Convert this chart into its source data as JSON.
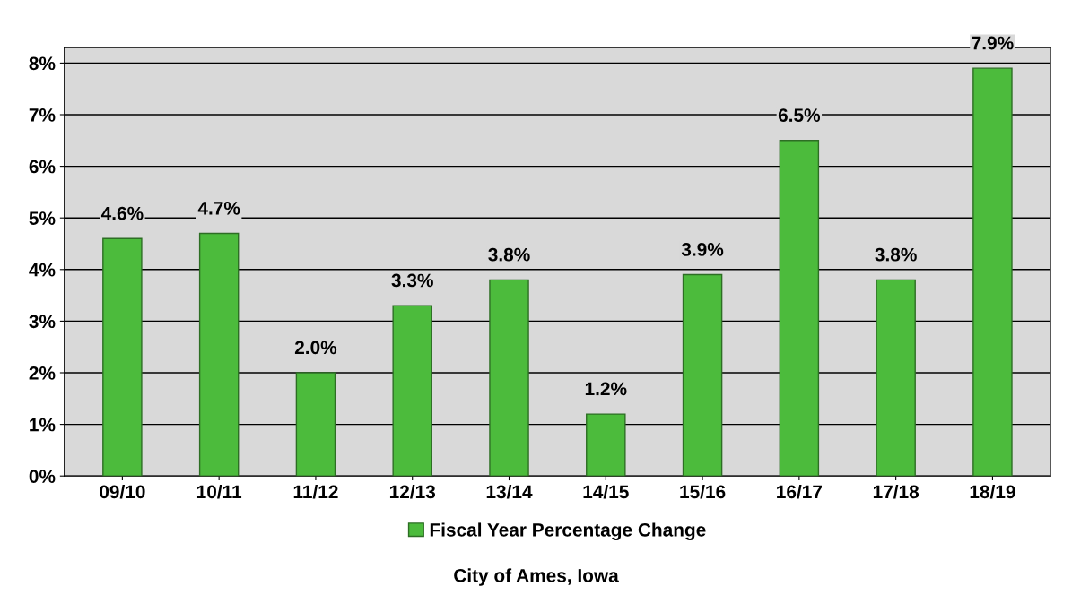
{
  "chart_data": {
    "type": "bar",
    "categories": [
      "09/10",
      "10/11",
      "11/12",
      "12/13",
      "13/14",
      "14/15",
      "15/16",
      "16/17",
      "17/18",
      "18/19"
    ],
    "series": [
      {
        "name": "Fiscal Year Percentage Change",
        "color": "#4cbb3c",
        "values": [
          4.6,
          4.7,
          2.0,
          3.3,
          3.8,
          1.2,
          3.9,
          6.5,
          3.8,
          7.9
        ],
        "value_labels": [
          "4.6%",
          "4.7%",
          "2.0%",
          "3.3%",
          "3.8%",
          "1.2%",
          "3.9%",
          "6.5%",
          "3.8%",
          "7.9%"
        ]
      }
    ],
    "ylim": [
      0,
      8.3
    ],
    "yticks": [
      {
        "value": 0,
        "label": "0%"
      },
      {
        "value": 1,
        "label": "1%"
      },
      {
        "value": 2,
        "label": "2%"
      },
      {
        "value": 3,
        "label": "3%"
      },
      {
        "value": 4,
        "label": "4%"
      },
      {
        "value": 5,
        "label": "5%"
      },
      {
        "value": 6,
        "label": "6%"
      },
      {
        "value": 7,
        "label": "7%"
      },
      {
        "value": 8,
        "label": "8%"
      }
    ],
    "grid": "y",
    "legend": "bottom",
    "annotations": [
      "City of Ames, Iowa"
    ]
  }
}
